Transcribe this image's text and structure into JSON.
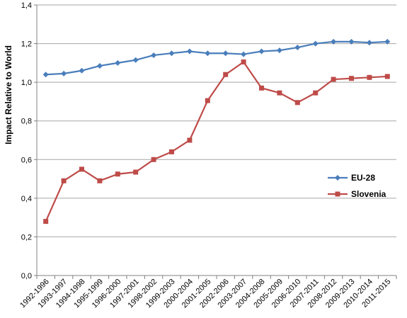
{
  "chart_data": {
    "type": "line",
    "title": "",
    "xlabel": "",
    "ylabel": "Impact Relative to World",
    "ylim": [
      0,
      1.4
    ],
    "ytick_step": 0.2,
    "ytick_labels": [
      "0,0",
      "0,2",
      "0,4",
      "0,6",
      "0,8",
      "1,0",
      "1,2",
      "1,4"
    ],
    "grid": "horizontal",
    "legend_position": "right",
    "categories": [
      "1992-1996",
      "1993-1997",
      "1994-1998",
      "1995-1999",
      "1996-2000",
      "1997-2001",
      "1998-2002",
      "1999-2003",
      "2000-2004",
      "2001-2005",
      "2002-2006",
      "2003-2007",
      "2004-2008",
      "2005-2009",
      "2006-2010",
      "2007-2011",
      "2008-2012",
      "2009-2013",
      "2010-2014",
      "2011-2015"
    ],
    "series": [
      {
        "name": "EU-28",
        "color": "#4a7ebb",
        "marker": "diamond",
        "values": [
          1.04,
          1.045,
          1.06,
          1.085,
          1.1,
          1.115,
          1.14,
          1.15,
          1.16,
          1.15,
          1.15,
          1.145,
          1.16,
          1.165,
          1.18,
          1.2,
          1.21,
          1.21,
          1.205,
          1.21
        ]
      },
      {
        "name": "Slovenia",
        "color": "#be4b48",
        "marker": "square",
        "values": [
          0.28,
          0.49,
          0.55,
          0.49,
          0.525,
          0.535,
          0.6,
          0.64,
          0.7,
          0.905,
          1.04,
          1.105,
          0.97,
          0.945,
          0.895,
          0.945,
          1.015,
          1.02,
          1.025,
          1.03
        ]
      }
    ]
  }
}
